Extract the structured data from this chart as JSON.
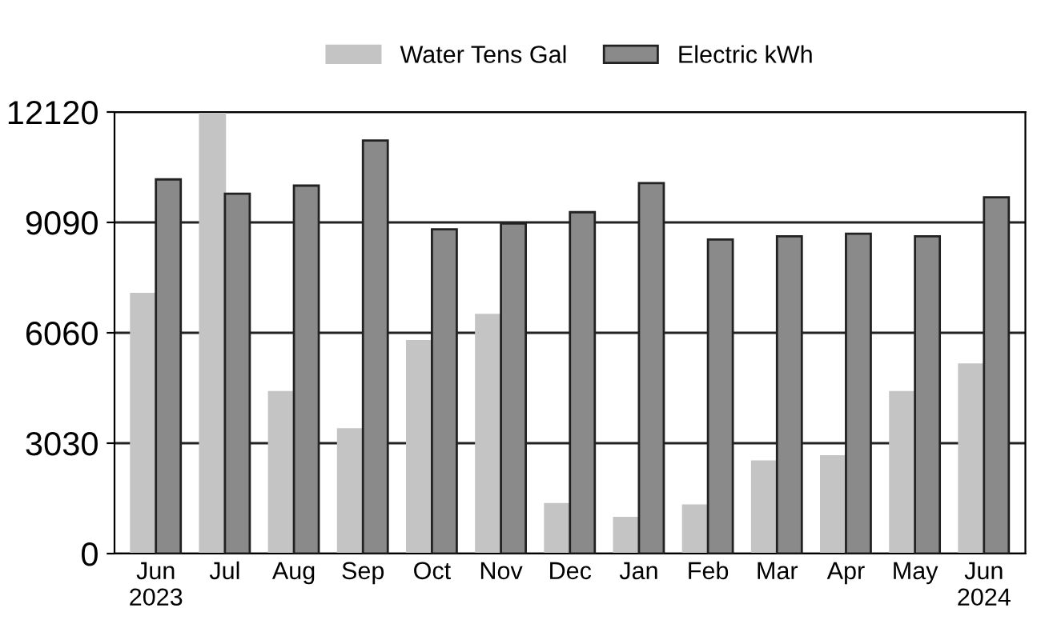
{
  "chart_data": {
    "type": "bar",
    "categories": [
      "Jun\n2023",
      "Jul",
      "Aug",
      "Sep",
      "Oct",
      "Nov",
      "Dec",
      "Jan",
      "Feb",
      "Mar",
      "Apr",
      "May",
      "Jun\n2024"
    ],
    "series": [
      {
        "name": "Water Tens Gal",
        "color": "#c4c4c4",
        "values": [
          7130,
          12120,
          4430,
          3410,
          5830,
          6550,
          1360,
          980,
          1320,
          2530,
          2670,
          4430,
          5190
        ]
      },
      {
        "name": "Electric kWh",
        "color": "#8a8a8a",
        "values": [
          10270,
          9880,
          10100,
          11340,
          8900,
          9060,
          9370,
          10170,
          8620,
          8710,
          8780,
          8710,
          9780
        ]
      }
    ],
    "ylim": [
      0,
      12120
    ],
    "yticks": [
      0,
      3030,
      6060,
      9090,
      12120
    ],
    "grid": "y",
    "legend": "top"
  }
}
